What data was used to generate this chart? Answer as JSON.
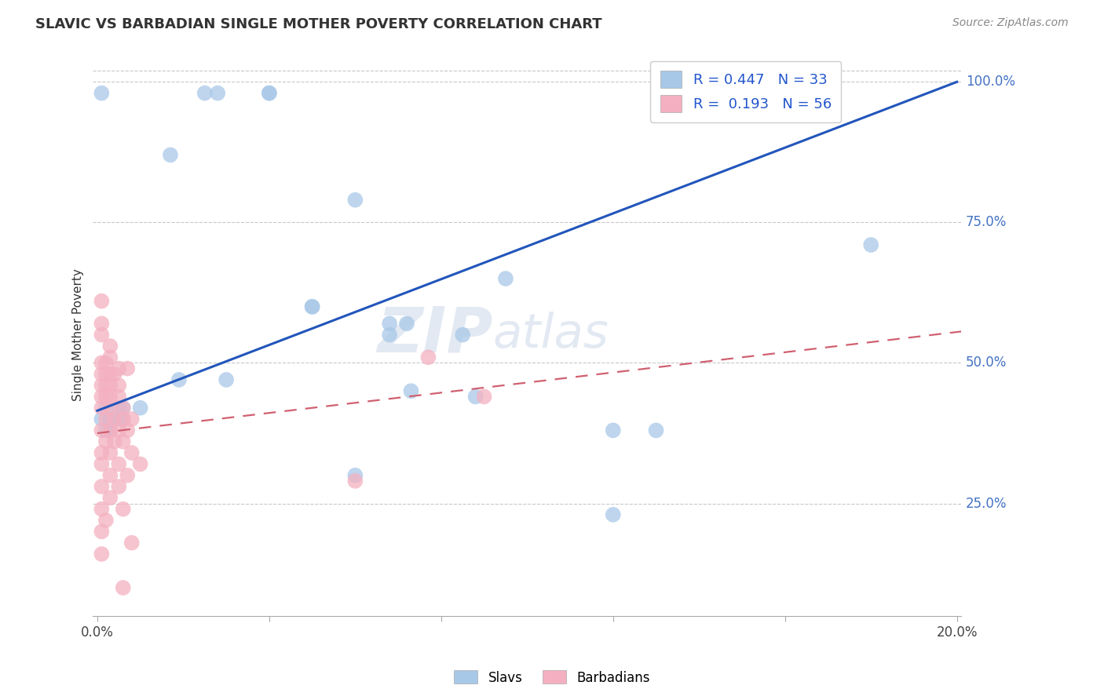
{
  "title": "SLAVIC VS BARBADIAN SINGLE MOTHER POVERTY CORRELATION CHART",
  "source": "Source: ZipAtlas.com",
  "ylabel": "Single Mother Poverty",
  "y_ticks": [
    0.25,
    0.5,
    0.75,
    1.0
  ],
  "y_tick_labels": [
    "25.0%",
    "50.0%",
    "75.0%",
    "100.0%"
  ],
  "slavic_color": "#a8c8e8",
  "barbadian_color": "#f4b0c0",
  "slavic_line_color": "#2255bb",
  "barbadian_line_color": "#d06070",
  "watermark_zip": "ZIP",
  "watermark_atlas": "atlas",
  "R_slavic": 0.447,
  "N_slavic": 33,
  "R_barbadian": 0.193,
  "N_barbadian": 56,
  "slavic_line_x": [
    0.0,
    0.2
  ],
  "slavic_line_y": [
    0.415,
    1.0
  ],
  "barbadian_line_x": [
    0.0,
    0.2
  ],
  "barbadian_line_y": [
    0.375,
    0.555
  ],
  "slavic_scatter_x": [
    0.001,
    0.025,
    0.028,
    0.04,
    0.04,
    0.017,
    0.002,
    0.005,
    0.006,
    0.01,
    0.001,
    0.003,
    0.005,
    0.006,
    0.002,
    0.003,
    0.073,
    0.088,
    0.12,
    0.13,
    0.05,
    0.06,
    0.068,
    0.085,
    0.095,
    0.05,
    0.072,
    0.068,
    0.06,
    0.12,
    0.18,
    0.019,
    0.03
  ],
  "slavic_scatter_y": [
    0.98,
    0.98,
    0.98,
    0.98,
    0.98,
    0.87,
    0.42,
    0.42,
    0.42,
    0.42,
    0.4,
    0.4,
    0.4,
    0.4,
    0.38,
    0.38,
    0.45,
    0.44,
    0.38,
    0.38,
    0.6,
    0.3,
    0.57,
    0.55,
    0.65,
    0.6,
    0.57,
    0.55,
    0.79,
    0.23,
    0.71,
    0.47,
    0.47
  ],
  "barbadian_scatter_x": [
    0.001,
    0.001,
    0.001,
    0.003,
    0.003,
    0.001,
    0.002,
    0.005,
    0.007,
    0.001,
    0.002,
    0.003,
    0.004,
    0.001,
    0.002,
    0.003,
    0.005,
    0.001,
    0.002,
    0.003,
    0.005,
    0.001,
    0.003,
    0.006,
    0.002,
    0.004,
    0.006,
    0.008,
    0.001,
    0.003,
    0.005,
    0.007,
    0.002,
    0.004,
    0.006,
    0.001,
    0.003,
    0.008,
    0.001,
    0.005,
    0.01,
    0.003,
    0.007,
    0.001,
    0.005,
    0.003,
    0.001,
    0.006,
    0.002,
    0.001,
    0.008,
    0.006,
    0.077,
    0.09,
    0.06,
    0.001
  ],
  "barbadian_scatter_y": [
    0.61,
    0.57,
    0.55,
    0.53,
    0.51,
    0.5,
    0.5,
    0.49,
    0.49,
    0.48,
    0.48,
    0.48,
    0.48,
    0.46,
    0.46,
    0.46,
    0.46,
    0.44,
    0.44,
    0.44,
    0.44,
    0.42,
    0.42,
    0.42,
    0.4,
    0.4,
    0.4,
    0.4,
    0.38,
    0.38,
    0.38,
    0.38,
    0.36,
    0.36,
    0.36,
    0.34,
    0.34,
    0.34,
    0.32,
    0.32,
    0.32,
    0.3,
    0.3,
    0.28,
    0.28,
    0.26,
    0.24,
    0.24,
    0.22,
    0.2,
    0.18,
    0.1,
    0.51,
    0.44,
    0.29,
    0.16
  ],
  "xlim": [
    0.0,
    0.2
  ],
  "ylim": [
    0.05,
    1.05
  ],
  "background_color": "#ffffff",
  "grid_color": "#c8c8c8",
  "title_fontsize": 13,
  "source_fontsize": 10,
  "axis_label_color": "#4472c4",
  "text_color": "#333333"
}
